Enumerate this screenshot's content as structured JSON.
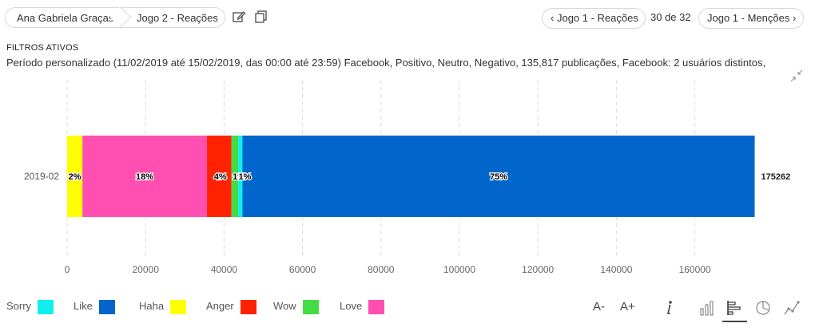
{
  "breadcrumb": {
    "item1": "Ana Gabriela Graças",
    "item2": "Jogo 2 - Reações"
  },
  "nav": {
    "prev_label": "Jogo 1 - Reações",
    "pager": "30 de 32",
    "next_label": "Jogo 1 - Menções"
  },
  "filters": {
    "title": "FILTROS ATIVOS",
    "text": "Período personalizado (11/02/2019 até 15/02/2019, das 00:00 até 23:59) Facebook, Positivo, Neutro, Negativo, 135,817 publicações, Facebook: 2 usuários distintos,"
  },
  "chart_data": {
    "type": "bar",
    "orientation": "horizontal",
    "stacked": true,
    "categories": [
      "2019-02"
    ],
    "series": [
      {
        "name": "Haha",
        "values": [
          3900
        ],
        "label": "2%",
        "color": "#ffff00"
      },
      {
        "name": "Love",
        "values": [
          31700
        ],
        "label": "18%",
        "color": "#ff4fb0"
      },
      {
        "name": "Anger",
        "values": [
          6300
        ],
        "label": "4%",
        "color": "#ff2200"
      },
      {
        "name": "Wow",
        "values": [
          1700
        ],
        "label": "1%",
        "color": "#44dd44"
      },
      {
        "name": "Sorry",
        "values": [
          1100
        ],
        "label": "1%",
        "color": "#11eeee"
      },
      {
        "name": "Like",
        "values": [
          130562
        ],
        "label": "75%",
        "color": "#0066cc"
      }
    ],
    "total_label": "175262",
    "x_ticks": [
      "0",
      "20000",
      "40000",
      "60000",
      "80000",
      "100000",
      "120000",
      "140000",
      "160000"
    ],
    "xlim": [
      0,
      180000
    ],
    "grid": true
  },
  "legend": [
    {
      "name": "Sorry",
      "color": "#11eeee"
    },
    {
      "name": "Like",
      "color": "#0066cc"
    },
    {
      "name": "Haha",
      "color": "#ffff00"
    },
    {
      "name": "Anger",
      "color": "#ff2200"
    },
    {
      "name": "Wow",
      "color": "#44dd44"
    },
    {
      "name": "Love",
      "color": "#ff4fb0"
    }
  ],
  "tools": {
    "font_decrease": "A-",
    "font_increase": "A+"
  },
  "icons": [
    "edit-icon",
    "copy-icon",
    "chevron-left-icon",
    "chevron-right-icon",
    "shrink-icon",
    "info-icon",
    "column-chart-icon",
    "bar-chart-icon",
    "pie-chart-icon",
    "line-chart-icon"
  ]
}
